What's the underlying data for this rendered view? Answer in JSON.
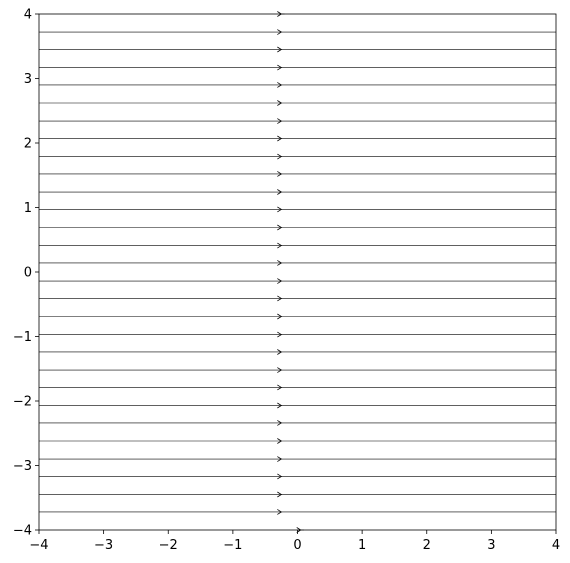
{
  "chart_data": {
    "type": "streamplot",
    "title": "",
    "xlabel": "",
    "ylabel": "",
    "xlim": [
      -4,
      4
    ],
    "ylim": [
      -4,
      4
    ],
    "grid": false,
    "legend": "none",
    "x_ticks": [
      -4,
      -3,
      -2,
      -1,
      0,
      1,
      2,
      3,
      4
    ],
    "y_ticks": [
      -4,
      -3,
      -2,
      -1,
      0,
      1,
      2,
      3,
      4
    ],
    "x_tick_labels": [
      "−4",
      "−3",
      "−2",
      "−1",
      "0",
      "1",
      "2",
      "3",
      "4"
    ],
    "y_tick_labels": [
      "−4",
      "−3",
      "−2",
      "−1",
      "0",
      "1",
      "2",
      "3",
      "4"
    ],
    "field_direction": "+x",
    "streamlines": [
      {
        "y": 4.0,
        "x_start": -0.25,
        "x_end": -0.2,
        "arrow_x": -0.25
      },
      {
        "y": 3.72,
        "x_start": -4,
        "x_end": 4,
        "arrow_x": -0.25
      },
      {
        "y": 3.45,
        "x_start": -4,
        "x_end": 4,
        "arrow_x": -0.25
      },
      {
        "y": 3.17,
        "x_start": -4,
        "x_end": 4,
        "arrow_x": -0.25
      },
      {
        "y": 2.9,
        "x_start": -4,
        "x_end": 4,
        "arrow_x": -0.25
      },
      {
        "y": 2.62,
        "x_start": -4,
        "x_end": 4,
        "arrow_x": -0.25
      },
      {
        "y": 2.34,
        "x_start": -4,
        "x_end": 4,
        "arrow_x": -0.25
      },
      {
        "y": 2.07,
        "x_start": -4,
        "x_end": 4,
        "arrow_x": -0.25
      },
      {
        "y": 1.79,
        "x_start": -4,
        "x_end": 4,
        "arrow_x": -0.25
      },
      {
        "y": 1.52,
        "x_start": -4,
        "x_end": 4,
        "arrow_x": -0.25
      },
      {
        "y": 1.24,
        "x_start": -4,
        "x_end": 4,
        "arrow_x": -0.25
      },
      {
        "y": 0.97,
        "x_start": -4,
        "x_end": 4,
        "arrow_x": -0.25
      },
      {
        "y": 0.69,
        "x_start": -4,
        "x_end": 4,
        "arrow_x": -0.25
      },
      {
        "y": 0.41,
        "x_start": -4,
        "x_end": 4,
        "arrow_x": -0.25
      },
      {
        "y": 0.14,
        "x_start": -4,
        "x_end": 4,
        "arrow_x": -0.25
      },
      {
        "y": -0.14,
        "x_start": -4,
        "x_end": 4,
        "arrow_x": -0.25
      },
      {
        "y": -0.41,
        "x_start": -4,
        "x_end": 4,
        "arrow_x": -0.25
      },
      {
        "y": -0.69,
        "x_start": -4,
        "x_end": 4,
        "arrow_x": -0.25
      },
      {
        "y": -0.97,
        "x_start": -4,
        "x_end": 4,
        "arrow_x": -0.25
      },
      {
        "y": -1.24,
        "x_start": -4,
        "x_end": 4,
        "arrow_x": -0.25
      },
      {
        "y": -1.52,
        "x_start": -4,
        "x_end": 4,
        "arrow_x": -0.25
      },
      {
        "y": -1.79,
        "x_start": -4,
        "x_end": 4,
        "arrow_x": -0.25
      },
      {
        "y": -2.07,
        "x_start": -4,
        "x_end": 4,
        "arrow_x": -0.25
      },
      {
        "y": -2.34,
        "x_start": -4,
        "x_end": 4,
        "arrow_x": -0.25
      },
      {
        "y": -2.62,
        "x_start": -4,
        "x_end": 4,
        "arrow_x": -0.25
      },
      {
        "y": -2.9,
        "x_start": -4,
        "x_end": 4,
        "arrow_x": -0.25
      },
      {
        "y": -3.17,
        "x_start": -4,
        "x_end": 4,
        "arrow_x": -0.25
      },
      {
        "y": -3.45,
        "x_start": -4,
        "x_end": 4,
        "arrow_x": -0.25
      },
      {
        "y": -3.72,
        "x_start": -4,
        "x_end": 4,
        "arrow_x": -0.25
      },
      {
        "y": -4.0,
        "x_start": 0.0,
        "x_end": 0.1,
        "arrow_x": 0.05
      }
    ],
    "colors": {
      "line": "#000000",
      "axes": "#000000",
      "background": "#ffffff"
    }
  }
}
